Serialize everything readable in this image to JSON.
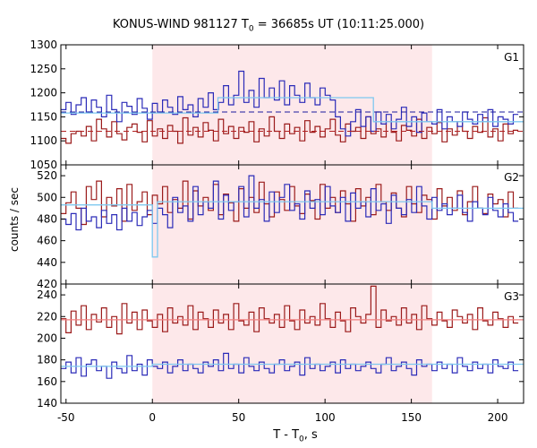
{
  "chart_data": {
    "type": "line",
    "title": {
      "prefix": "KONUS-WIND 981127 T",
      "sub": "0",
      "suffix": " = 36685s UT (10:11:25.000)"
    },
    "xlabel": {
      "prefix": "T - T",
      "sub": "0",
      "suffix": ", s"
    },
    "ylabel": "counts / sec",
    "xlim": [
      -53,
      215
    ],
    "xticks": [
      -50,
      0,
      50,
      100,
      150,
      200
    ],
    "shaded_interval": [
      0,
      162
    ],
    "colors": {
      "shade": "#fde8ea",
      "series_red": "#9b1b1b",
      "series_blue": "#2b2bb8",
      "fit_light_blue": "#7ec8f0",
      "fit_pink": "#f08080",
      "mean_dashed_red": "#b22222",
      "mean_dashed_blue": "#1a1a9e"
    },
    "panels": [
      {
        "label": "G1",
        "ylim": [
          1050,
          1300
        ],
        "yticks": [
          1050,
          1100,
          1150,
          1200,
          1250,
          1300
        ],
        "binsize": 2.944,
        "series": [
          {
            "color": "series_red",
            "mean": 1118,
            "values": [
              1105,
              1095,
              1115,
              1120,
              1110,
              1130,
              1100,
              1145,
              1125,
              1108,
              1140,
              1115,
              1102,
              1128,
              1135,
              1118,
              1098,
              1142,
              1110,
              1125,
              1105,
              1132,
              1120,
              1095,
              1148,
              1112,
              1128,
              1108,
              1138,
              1122,
              1100,
              1145,
              1115,
              1130,
              1105,
              1128,
              1118,
              1140,
              1098,
              1125,
              1110,
              1150,
              1120,
              1105,
              1135,
              1115,
              1128,
              1100,
              1142,
              1118,
              1130,
              1108,
              1125,
              1145,
              1112,
              1098,
              1135,
              1120,
              1128,
              1105,
              1150,
              1115,
              1125,
              1108,
              1140,
              1118,
              1100,
              1132,
              1122,
              1110,
              1145,
              1105,
              1128,
              1115,
              1138,
              1098,
              1125,
              1112,
              1140,
              1120,
              1105,
              1130,
              1118,
              1148,
              1108,
              1125,
              1100,
              1135,
              1115,
              1122
            ]
          },
          {
            "color": "series_blue",
            "mean": 1158,
            "values": [
              1165,
              1180,
              1155,
              1175,
              1190,
              1160,
              1185,
              1170,
              1150,
              1195,
              1165,
              1140,
              1180,
              1172,
              1155,
              1188,
              1168,
              1145,
              1178,
              1160,
              1185,
              1170,
              1155,
              1192,
              1165,
              1175,
              1150,
              1188,
              1170,
              1200,
              1165,
              1180,
              1215,
              1175,
              1195,
              1245,
              1180,
              1205,
              1170,
              1230,
              1190,
              1210,
              1185,
              1225,
              1175,
              1215,
              1195,
              1180,
              1220,
              1190,
              1175,
              1210,
              1195,
              1185,
              1150,
              1125,
              1110,
              1140,
              1165,
              1130,
              1150,
              1120,
              1160,
              1135,
              1155,
              1125,
              1145,
              1170,
              1130,
              1150,
              1118,
              1158,
              1140,
              1135,
              1165,
              1125,
              1150,
              1140,
              1130,
              1160,
              1145,
              1135,
              1155,
              1140,
              1165,
              1130,
              1150,
              1145,
              1135,
              1155
            ]
          }
        ],
        "fits": [
          {
            "color": "fit_light_blue",
            "steps": [
              [
                -53,
                1158
              ],
              [
                38,
                1158
              ],
              [
                38,
                1190
              ],
              [
                128,
                1190
              ],
              [
                128,
                1140
              ],
              [
                215,
                1140
              ]
            ]
          }
        ],
        "dashed": [
          {
            "color": "mean_dashed_red",
            "y": 1120
          },
          {
            "color": "mean_dashed_blue",
            "y": 1160
          }
        ]
      },
      {
        "label": "G2",
        "ylim": [
          420,
          530
        ],
        "yticks": [
          420,
          440,
          460,
          480,
          500,
          520
        ],
        "binsize": 2.944,
        "series": [
          {
            "color": "series_red",
            "mean": 493,
            "values": [
              485,
              495,
              505,
              490,
              475,
              510,
              498,
              515,
              482,
              500,
              492,
              508,
              478,
              512,
              488,
              496,
              505,
              484,
              502,
              494,
              510,
              486,
              498,
              490,
              515,
              480,
              506,
              492,
              500,
              488,
              512,
              484,
              503,
              495,
              478,
              508,
              490,
              500,
              486,
              514,
              494,
              482,
              505,
              498,
              488,
              510,
              492,
              485,
              503,
              497,
              480,
              512,
              490,
              500,
              486,
              506,
              494,
              478,
              508,
              492,
              500,
              484,
              512,
              496,
              488,
              504,
              490,
              482,
              510,
              494,
              486,
              502,
              498,
              480,
              508,
              492,
              500,
              488,
              506,
              484,
              496,
              510,
              490,
              485,
              503,
              494,
              498,
              482,
              505,
              490
            ]
          },
          {
            "color": "series_blue",
            "mean": 490,
            "values": [
              480,
              475,
              485,
              470,
              490,
              478,
              482,
              472,
              488,
              476,
              484,
              470,
              490,
              478,
              486,
              474,
              482,
              488,
              476,
              490,
              484,
              472,
              500,
              486,
              492,
              478,
              510,
              484,
              496,
              490,
              515,
              480,
              502,
              488,
              496,
              510,
              482,
              520,
              490,
              498,
              478,
              505,
              486,
              500,
              512,
              488,
              494,
              480,
              506,
              490,
              498,
              484,
              510,
              492,
              486,
              500,
              478,
              504,
              490,
              496,
              482,
              508,
              488,
              494,
              476,
              502,
              490,
              484,
              498,
              486,
              510,
              492,
              480,
              500,
              488,
              494,
              484,
              490,
              502,
              486,
              478,
              496,
              490,
              484,
              500,
              488,
              482,
              494,
              486,
              478
            ]
          }
        ],
        "fits": [
          {
            "color": "fit_light_blue",
            "steps": [
              [
                -53,
                493
              ],
              [
                0,
                493
              ],
              [
                0,
                445
              ],
              [
                3,
                445
              ],
              [
                3,
                496
              ],
              [
                162,
                496
              ],
              [
                162,
                490
              ],
              [
                215,
                490
              ]
            ]
          }
        ],
        "dashed": []
      },
      {
        "label": "G3",
        "ylim": [
          140,
          250
        ],
        "yticks": [
          140,
          160,
          180,
          200,
          220,
          240
        ],
        "binsize": 2.944,
        "series": [
          {
            "color": "series_red",
            "mean": 217,
            "values": [
              218,
              205,
              225,
              212,
              230,
              208,
              222,
              215,
              228,
              210,
              220,
              204,
              232,
              214,
              224,
              208,
              226,
              216,
              210,
              222,
              206,
              228,
              214,
              220,
              212,
              230,
              208,
              224,
              218,
              210,
              226,
              214,
              222,
              208,
              232,
              216,
              212,
              224,
              206,
              228,
              218,
              214,
              222,
              210,
              230,
              216,
              208,
              226,
              214,
              220,
              212,
              232,
              218,
              210,
              224,
              216,
              206,
              228,
              220,
              214,
              222,
              248,
              210,
              226,
              216,
              220,
              212,
              228,
              214,
              222,
              208,
              230,
              218,
              212,
              224,
              216,
              210,
              226,
              220,
              214,
              222,
              208,
              228,
              216,
              212,
              224,
              218,
              210,
              220,
              214
            ]
          },
          {
            "color": "series_blue",
            "mean": 175,
            "values": [
              172,
              178,
              168,
              182,
              165,
              176,
              180,
              170,
              174,
              163,
              178,
              172,
              168,
              184,
              170,
              176,
              166,
              180,
              174,
              172,
              178,
              168,
              174,
              180,
              170,
              176,
              172,
              168,
              178,
              174,
              180,
              170,
              186,
              172,
              176,
              168,
              182,
              174,
              170,
              178,
              172,
              168,
              176,
              180,
              170,
              174,
              178,
              166,
              182,
              172,
              176,
              170,
              174,
              178,
              168,
              180,
              172,
              176,
              170,
              174,
              178,
              172,
              168,
              176,
              182,
              170,
              174,
              178,
              172,
              166,
              180,
              174,
              176,
              170,
              178,
              172,
              176,
              168,
              182,
              174,
              170,
              178,
              172,
              176,
              168,
              180,
              174,
              172,
              178,
              170
            ]
          }
        ],
        "fits": [
          {
            "color": "fit_pink",
            "steps": [
              [
                -53,
                217
              ],
              [
                215,
                217
              ]
            ]
          },
          {
            "color": "fit_light_blue",
            "steps": [
              [
                -53,
                174
              ],
              [
                0,
                174
              ],
              [
                0,
                176
              ],
              [
                215,
                176
              ]
            ]
          }
        ],
        "dashed": []
      }
    ]
  }
}
